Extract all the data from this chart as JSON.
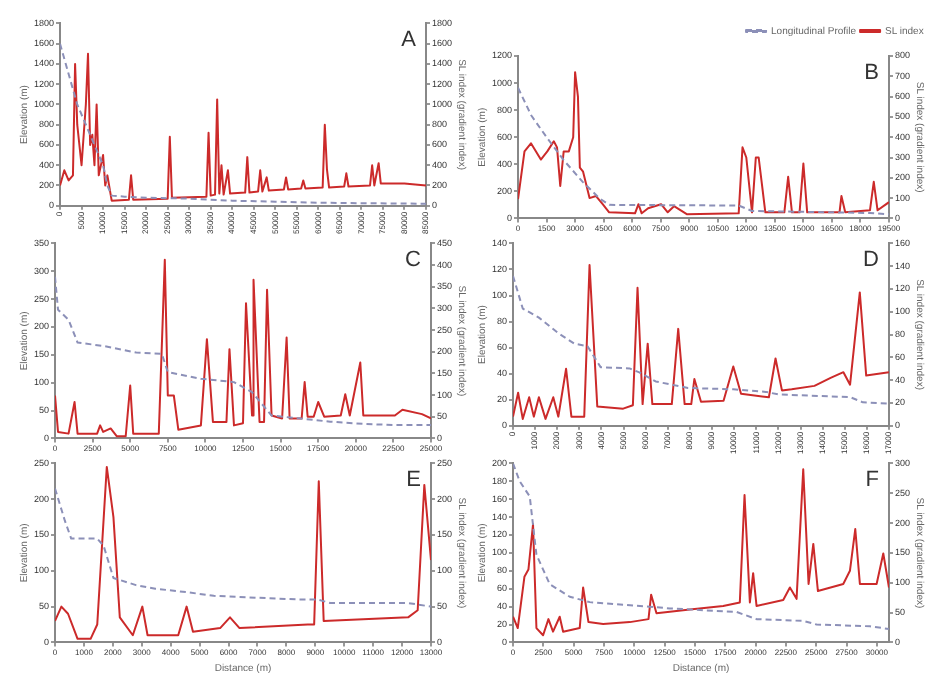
{
  "chart_data": [
    {
      "type": "line",
      "annotations": [
        "A"
      ],
      "ylabel": "Elevation (m)",
      "y2label": "SL index (gradient index)",
      "marker": "none",
      "grid": false,
      "legend": false,
      "xlim": [
        0,
        85000
      ],
      "xticks": [
        0,
        5000,
        10000,
        15000,
        20000,
        25000,
        30000,
        35000,
        40000,
        45000,
        50000,
        55000,
        60000,
        65000,
        70000,
        75000,
        80000,
        85000
      ],
      "ylim": [
        0,
        1800
      ],
      "yticks": [
        0,
        200,
        400,
        600,
        800,
        1000,
        1200,
        1400,
        1600,
        1800
      ],
      "y2lim": [
        0,
        1800
      ],
      "y2ticks": [
        0,
        200,
        400,
        600,
        800,
        1000,
        1200,
        1400,
        1600,
        1800
      ],
      "series": [
        {
          "color": "#8c90b8",
          "line_style": "dashed",
          "x": [
            0,
            2000,
            4000,
            6000,
            8000,
            10000,
            11000,
            12000,
            15000,
            20000,
            30000,
            40000,
            50000,
            60000,
            70000,
            85000
          ],
          "values": [
            1600,
            1300,
            1000,
            800,
            600,
            400,
            200,
            100,
            90,
            80,
            70,
            50,
            40,
            30,
            25,
            20
          ]
        },
        {
          "color": "#cc2a2a",
          "line_style": "solid",
          "axis": "y2",
          "x": [
            0,
            1000,
            2000,
            3000,
            3500,
            4000,
            5000,
            6000,
            6500,
            7000,
            7500,
            8000,
            8500,
            9000,
            10000,
            10500,
            11000,
            12000,
            16000,
            16500,
            17000,
            25000,
            25500,
            26000,
            34000,
            34500,
            35000,
            36000,
            36500,
            37000,
            37500,
            38000,
            39000,
            39500,
            43000,
            43500,
            44000,
            46000,
            46500,
            47000,
            48000,
            48500,
            52000,
            52500,
            53000,
            56000,
            56500,
            57000,
            61000,
            61500,
            62000,
            62500,
            66000,
            66500,
            67000,
            72000,
            72500,
            73000,
            74000,
            74500,
            80000,
            85000
          ],
          "values": [
            200,
            350,
            250,
            300,
            1400,
            800,
            400,
            1000,
            1500,
            600,
            700,
            400,
            1000,
            300,
            500,
            200,
            300,
            50,
            60,
            300,
            60,
            70,
            680,
            80,
            90,
            720,
            100,
            110,
            1050,
            120,
            400,
            110,
            350,
            120,
            130,
            480,
            130,
            140,
            350,
            140,
            280,
            150,
            160,
            280,
            160,
            170,
            250,
            170,
            180,
            800,
            360,
            180,
            190,
            320,
            190,
            200,
            400,
            200,
            420,
            220,
            220,
            200
          ]
        }
      ]
    },
    {
      "type": "line",
      "annotations": [
        "B"
      ],
      "ylabel": "Elevation (m)",
      "y2label": "SL index (gradient index)",
      "marker": "none",
      "grid": false,
      "legend": "top right",
      "xlim": [
        0,
        19500
      ],
      "xticks": [
        0,
        1500,
        3000,
        4500,
        6000,
        7500,
        9000,
        10500,
        12000,
        13500,
        15000,
        16500,
        18000,
        19500
      ],
      "ylim": [
        0,
        1200
      ],
      "yticks": [
        0,
        200,
        400,
        600,
        800,
        1000,
        1200
      ],
      "y2lim": [
        0,
        800
      ],
      "y2ticks": [
        0,
        100,
        200,
        300,
        400,
        500,
        600,
        700,
        800
      ],
      "series": [
        {
          "name": "Longitudinal Profile",
          "color": "#8c90b8",
          "line_style": "dashed",
          "x": [
            0,
            700,
            1500,
            2400,
            3400,
            4300,
            4800,
            11600,
            12300,
            18500,
            19500
          ],
          "values": [
            965,
            760,
            600,
            430,
            270,
            145,
            100,
            95,
            55,
            40,
            30
          ]
        },
        {
          "name": "SL index",
          "color": "#cc2a2a",
          "line_style": "solid",
          "axis": "y2",
          "x": [
            0,
            340,
            680,
            1200,
            1540,
            1880,
            2050,
            2220,
            2400,
            2670,
            2900,
            3000,
            3150,
            3250,
            3420,
            3760,
            4100,
            4450,
            4790,
            6150,
            6330,
            6500,
            6840,
            7520,
            7870,
            8200,
            8890,
            11600,
            11800,
            12000,
            12300,
            12500,
            12650,
            13000,
            14000,
            14200,
            14400,
            14800,
            15000,
            15200,
            16900,
            17000,
            17200,
            18500,
            18700,
            18900,
            19500
          ],
          "values": [
            95,
            330,
            370,
            290,
            330,
            380,
            350,
            160,
            330,
            330,
            400,
            720,
            600,
            250,
            230,
            100,
            110,
            70,
            30,
            25,
            70,
            25,
            50,
            70,
            30,
            60,
            20,
            25,
            350,
            300,
            30,
            300,
            300,
            30,
            30,
            205,
            30,
            30,
            270,
            30,
            30,
            110,
            30,
            40,
            180,
            40,
            80
          ]
        }
      ]
    },
    {
      "type": "line",
      "annotations": [
        "C"
      ],
      "ylabel": "Elevation (m)",
      "y2label": "SL index (gradient index)",
      "marker": "none",
      "grid": false,
      "legend": false,
      "xlim": [
        0,
        25000
      ],
      "xticks": [
        0,
        2500,
        5000,
        7500,
        10000,
        12500,
        15000,
        17500,
        20000,
        22500,
        25000
      ],
      "ylim": [
        0,
        350
      ],
      "yticks": [
        0,
        50,
        100,
        150,
        200,
        250,
        300,
        350
      ],
      "y2lim": [
        0,
        450
      ],
      "y2ticks": [
        0,
        50,
        100,
        150,
        200,
        250,
        300,
        350,
        400,
        450
      ],
      "series": [
        {
          "color": "#8c90b8",
          "line_style": "dashed",
          "x": [
            0,
            200,
            900,
            1500,
            3200,
            5400,
            7100,
            7500,
            9700,
            11900,
            13100,
            14400,
            16200,
            18300,
            20500,
            22600,
            25000
          ],
          "values": [
            290,
            231,
            213,
            172,
            166,
            154,
            152,
            119,
            107,
            101,
            83,
            41,
            36,
            30,
            26,
            24,
            24
          ]
        },
        {
          "color": "#cc2a2a",
          "line_style": "solid",
          "axis": "y2",
          "x": [
            0,
            200,
            900,
            1300,
            1500,
            2800,
            3000,
            3200,
            3700,
            4100,
            4700,
            5000,
            5200,
            6900,
            7300,
            7500,
            7900,
            8200,
            9700,
            10100,
            10500,
            11400,
            11600,
            11900,
            12500,
            12700,
            13100,
            13200,
            13600,
            13900,
            14100,
            14400,
            15100,
            15400,
            15600,
            16400,
            16600,
            16800,
            17200,
            17500,
            17900,
            19000,
            19300,
            19600,
            20300,
            20500,
            22600,
            23100,
            24400,
            25000
          ],
          "values": [
            99,
            15,
            11,
            84,
            11,
            11,
            30,
            15,
            23,
            5,
            5,
            122,
            11,
            11,
            412,
            99,
            99,
            20,
            30,
            229,
            38,
            38,
            206,
            30,
            35,
            312,
            53,
            366,
            38,
            38,
            343,
            53,
            46,
            233,
            46,
            46,
            130,
            50,
            50,
            84,
            50,
            53,
            102,
            53,
            175,
            53,
            53,
            66,
            56,
            46
          ]
        }
      ]
    },
    {
      "type": "line",
      "annotations": [
        "D"
      ],
      "ylabel": "Elevation (m)",
      "y2label": "SL index (gradient index)",
      "marker": "none",
      "grid": false,
      "legend": false,
      "xlim": [
        0,
        17000
      ],
      "xticks": [
        0,
        1000,
        2000,
        3000,
        4000,
        5000,
        6000,
        7000,
        8000,
        9000,
        10000,
        11000,
        12000,
        13000,
        14000,
        15000,
        16000,
        17000
      ],
      "ylim": [
        0,
        140
      ],
      "yticks": [
        0,
        20,
        40,
        60,
        80,
        100,
        120,
        140
      ],
      "y2lim": [
        0,
        160
      ],
      "y2ticks": [
        0,
        20,
        40,
        60,
        80,
        100,
        120,
        140,
        160
      ],
      "series": [
        {
          "color": "#8c90b8",
          "line_style": "dashed",
          "x": [
            0,
            440,
            1170,
            2050,
            2780,
            3370,
            3960,
            5270,
            5710,
            6450,
            7910,
            9960,
            11430,
            12010,
            15240,
            15820,
            17000
          ],
          "values": [
            115,
            90,
            83,
            71,
            63,
            61,
            45,
            44,
            41,
            34,
            29,
            28,
            26,
            24,
            22,
            18,
            17
          ]
        },
        {
          "color": "#cc2a2a",
          "line_style": "solid",
          "axis": "y2",
          "x": [
            0,
            230,
            440,
            730,
            940,
            1170,
            1470,
            1820,
            2050,
            2400,
            2640,
            3220,
            3460,
            3810,
            4980,
            5420,
            5630,
            5860,
            6090,
            6300,
            7180,
            7470,
            7760,
            8060,
            8200,
            8500,
            9520,
            9960,
            10310,
            11570,
            11870,
            12160,
            12600,
            13630,
            14360,
            14940,
            15240,
            15680,
            15970,
            17000
          ],
          "values": [
            8,
            29,
            6,
            25,
            8,
            25,
            6,
            25,
            8,
            50,
            8,
            8,
            141,
            17,
            15,
            18,
            121,
            19,
            72,
            19,
            19,
            85,
            19,
            19,
            41,
            21,
            22,
            52,
            28,
            25,
            59,
            31,
            32,
            35,
            42,
            47,
            36,
            117,
            44,
            47
          ]
        }
      ]
    },
    {
      "type": "line",
      "annotations": [
        "E"
      ],
      "xlabel": "Distance (m)",
      "ylabel": "Elevation (m)",
      "y2label": "SL index (gradient index)",
      "marker": "none",
      "grid": false,
      "legend": false,
      "xlim": [
        0,
        13000
      ],
      "xticks": [
        0,
        1000,
        2000,
        3000,
        4000,
        5000,
        6000,
        7000,
        8000,
        9000,
        10000,
        11000,
        12000,
        13000
      ],
      "ylim": [
        0,
        250
      ],
      "yticks": [
        0,
        50,
        100,
        150,
        200,
        250
      ],
      "y2lim": [
        0,
        250
      ],
      "y2ticks": [
        0,
        50,
        100,
        150,
        200,
        250
      ],
      "series": [
        {
          "color": "#8c90b8",
          "line_style": "dashed",
          "x": [
            0,
            340,
            560,
            1460,
            1680,
            2020,
            2800,
            3470,
            4590,
            5490,
            8400,
            9070,
            9520,
            12210,
            13000
          ],
          "values": [
            215,
            170,
            145,
            145,
            135,
            90,
            80,
            75,
            70,
            65,
            60,
            60,
            55,
            55,
            50
          ]
        },
        {
          "color": "#cc2a2a",
          "line_style": "solid",
          "axis": "y2",
          "x": [
            0,
            220,
            450,
            780,
            1230,
            1460,
            1790,
            2020,
            2240,
            2690,
            3020,
            3200,
            4260,
            4550,
            4770,
            5710,
            6050,
            6380,
            8740,
            8960,
            9120,
            9290,
            12210,
            12540,
            12770,
            13000
          ],
          "values": [
            30,
            50,
            40,
            5,
            5,
            25,
            245,
            175,
            35,
            10,
            50,
            10,
            10,
            50,
            15,
            20,
            35,
            20,
            25,
            25,
            225,
            30,
            35,
            45,
            220,
            115
          ]
        }
      ]
    },
    {
      "type": "line",
      "annotations": [
        "F"
      ],
      "xlabel": "Distance (m)",
      "ylabel": "Elevation (m)",
      "y2label": "SL index (gradient index)",
      "marker": "none",
      "grid": false,
      "legend": false,
      "xlim": [
        0,
        31000
      ],
      "xticks": [
        0,
        2500,
        5000,
        7500,
        10000,
        12500,
        15000,
        17500,
        20000,
        22500,
        25000,
        27500,
        30000
      ],
      "ylim": [
        0,
        200
      ],
      "yticks": [
        0,
        20,
        40,
        60,
        80,
        100,
        120,
        140,
        160,
        180,
        200
      ],
      "y2lim": [
        0,
        300
      ],
      "y2ticks": [
        0,
        50,
        100,
        150,
        200,
        250,
        300
      ],
      "series": [
        {
          "color": "#8c90b8",
          "line_style": "dashed",
          "x": [
            0,
            550,
            1380,
            1930,
            3030,
            4680,
            6330,
            10180,
            12930,
            18430,
            20080,
            23930,
            25030,
            29430,
            31000
          ],
          "values": [
            200,
            180,
            163,
            98,
            65,
            51,
            45,
            41,
            38,
            34,
            26,
            24,
            20,
            18,
            15
          ]
        },
        {
          "color": "#cc2a2a",
          "line_style": "solid",
          "axis": "y2",
          "x": [
            0,
            390,
            940,
            1270,
            1650,
            1930,
            2480,
            2920,
            3300,
            3850,
            4130,
            5500,
            5780,
            6220,
            7430,
            9630,
            11170,
            11390,
            11830,
            14580,
            17330,
            18700,
            19090,
            19530,
            19800,
            20080,
            22280,
            22830,
            23380,
            23930,
            24370,
            24760,
            25140,
            27230,
            27780,
            28220,
            28600,
            29980,
            30530,
            31000
          ],
          "values": [
            43,
            24,
            110,
            122,
            198,
            24,
            12,
            39,
            18,
            43,
            18,
            24,
            92,
            34,
            31,
            34,
            39,
            80,
            49,
            55,
            61,
            67,
            247,
            67,
            116,
            61,
            71,
            92,
            73,
            290,
            98,
            165,
            86,
            98,
            120,
            190,
            98,
            98,
            149,
            92
          ]
        }
      ]
    }
  ]
}
